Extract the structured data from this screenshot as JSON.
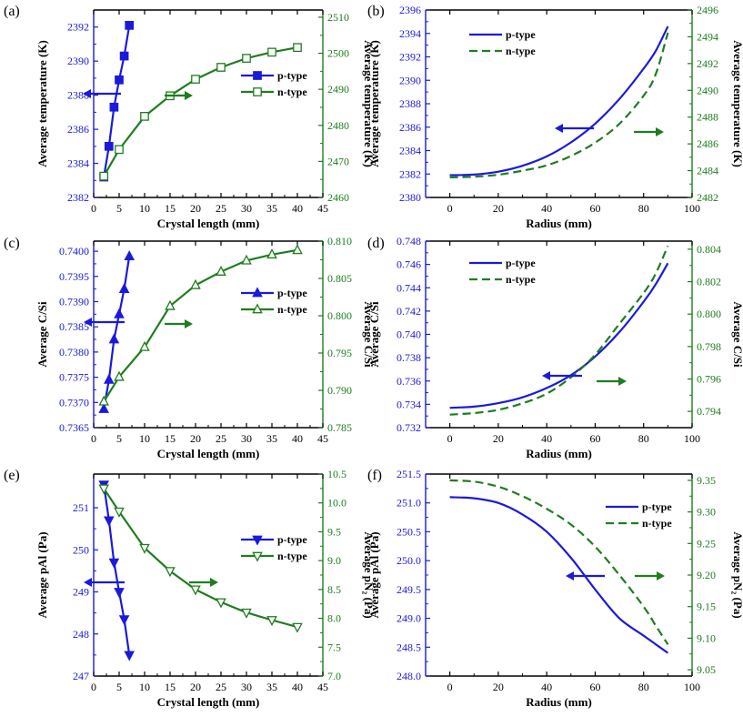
{
  "colors": {
    "p": "#1a1adb",
    "n": "#1e7d1e",
    "axis": "#000000"
  },
  "chart_data": [
    {
      "id": "a",
      "panel_label": "(a)",
      "type": "line",
      "xlabel": "Crystal length (mm)",
      "ylabel_left": "Average temperature (K)",
      "ylabel_right": "Average temperature (K)",
      "xlim": [
        0,
        45
      ],
      "xticks": [
        0,
        5,
        10,
        15,
        20,
        25,
        30,
        35,
        40,
        45
      ],
      "ylim_left": [
        2382,
        2393
      ],
      "yticks_left": [
        2382,
        2384,
        2386,
        2388,
        2390,
        2392
      ],
      "ylim_right": [
        2460,
        2512
      ],
      "yticks_right": [
        2460,
        2470,
        2480,
        2490,
        2500,
        2510
      ],
      "series": [
        {
          "name": "p-type",
          "axis": "left",
          "marker": "square",
          "filled": true,
          "color": "p",
          "x": [
            2,
            3,
            4,
            5,
            6,
            7
          ],
          "y": [
            2383.2,
            2385.0,
            2387.3,
            2388.9,
            2390.3,
            2392.1
          ]
        },
        {
          "name": "n-type",
          "axis": "right",
          "marker": "square",
          "filled": false,
          "color": "n",
          "x": [
            2,
            5,
            10,
            15,
            20,
            25,
            30,
            35,
            40
          ],
          "y": [
            2465.9,
            2473.3,
            2482.5,
            2488.2,
            2492.8,
            2496.1,
            2498.6,
            2500.3,
            2501.6
          ]
        }
      ],
      "legend": [
        "p-type",
        "n-type"
      ]
    },
    {
      "id": "b",
      "panel_label": "(b)",
      "type": "line",
      "xlabel": "Radius (mm)",
      "ylabel_left": "Average temperature (K)",
      "ylabel_right": "Average temperature (K)",
      "xlim": [
        -10,
        100
      ],
      "xticks": [
        0,
        20,
        40,
        60,
        80,
        100
      ],
      "ylim_left": [
        2380,
        2396
      ],
      "yticks_left": [
        2380,
        2382,
        2384,
        2386,
        2388,
        2390,
        2392,
        2394,
        2396
      ],
      "ylim_right": [
        2482,
        2496
      ],
      "yticks_right": [
        2482,
        2484,
        2486,
        2488,
        2490,
        2492,
        2494,
        2496
      ],
      "series": [
        {
          "name": "p-type",
          "axis": "left",
          "style": "solid",
          "color": "p",
          "x": [
            0,
            10,
            20,
            30,
            40,
            50,
            60,
            70,
            80,
            85,
            90
          ],
          "y": [
            2381.9,
            2381.95,
            2382.2,
            2382.7,
            2383.5,
            2384.7,
            2386.3,
            2388.4,
            2391.0,
            2392.5,
            2394.6
          ]
        },
        {
          "name": "n-type",
          "axis": "right",
          "style": "dashed",
          "color": "n",
          "x": [
            0,
            10,
            20,
            30,
            40,
            50,
            60,
            70,
            80,
            85,
            90
          ],
          "y": [
            2483.5,
            2483.55,
            2483.7,
            2484.0,
            2484.4,
            2485.1,
            2486.1,
            2487.5,
            2489.6,
            2491.2,
            2494.3
          ]
        }
      ],
      "legend": [
        "p-type",
        "n-type"
      ]
    },
    {
      "id": "c",
      "panel_label": "(c)",
      "type": "line",
      "xlabel": "Crystal length (mm)",
      "ylabel_left": "Average C/Si",
      "ylabel_right": "Average C/Si",
      "xlim": [
        0,
        45
      ],
      "xticks": [
        0,
        5,
        10,
        15,
        20,
        25,
        30,
        35,
        40,
        45
      ],
      "ylim_left": [
        0.7365,
        0.7402
      ],
      "yticks_left": [
        0.7365,
        0.737,
        0.7375,
        0.738,
        0.7385,
        0.739,
        0.7395,
        0.74
      ],
      "ytick_fmt_left": 4,
      "ylim_right": [
        0.785,
        0.81
      ],
      "yticks_right": [
        0.785,
        0.79,
        0.795,
        0.8,
        0.805,
        0.81
      ],
      "ytick_fmt_right": 3,
      "series": [
        {
          "name": "p-type",
          "axis": "left",
          "marker": "triangle-up",
          "filled": true,
          "color": "p",
          "x": [
            2,
            3,
            4,
            5,
            6,
            7
          ],
          "y": [
            0.73687,
            0.73745,
            0.73825,
            0.73875,
            0.73925,
            0.7399
          ]
        },
        {
          "name": "n-type",
          "axis": "right",
          "marker": "triangle-up",
          "filled": false,
          "color": "n",
          "x": [
            2,
            5,
            10,
            15,
            20,
            25,
            30,
            35,
            40
          ],
          "y": [
            0.7885,
            0.7918,
            0.7958,
            0.8013,
            0.8041,
            0.8059,
            0.8074,
            0.8082,
            0.8088
          ]
        }
      ],
      "legend": [
        "p-type",
        "n-type"
      ]
    },
    {
      "id": "d",
      "panel_label": "(d)",
      "type": "line",
      "xlabel": "Radius (mm)",
      "ylabel_left": "Average C/Si",
      "ylabel_right": "Average C/Si",
      "xlim": [
        -10,
        100
      ],
      "xticks": [
        0,
        20,
        40,
        60,
        80,
        100
      ],
      "ylim_left": [
        0.732,
        0.748
      ],
      "yticks_left": [
        0.732,
        0.734,
        0.736,
        0.738,
        0.74,
        0.742,
        0.744,
        0.746,
        0.748
      ],
      "ytick_fmt_left": 3,
      "ylim_right": [
        0.793,
        0.8045
      ],
      "yticks_right": [
        0.794,
        0.796,
        0.798,
        0.8,
        0.802,
        0.804
      ],
      "ytick_fmt_right": 3,
      "series": [
        {
          "name": "p-type",
          "axis": "left",
          "style": "solid",
          "color": "p",
          "x": [
            0,
            10,
            20,
            30,
            40,
            50,
            60,
            70,
            80,
            85,
            90
          ],
          "y": [
            0.7337,
            0.7338,
            0.7341,
            0.7346,
            0.7354,
            0.7365,
            0.7381,
            0.7402,
            0.7428,
            0.7443,
            0.7461
          ]
        },
        {
          "name": "n-type",
          "axis": "right",
          "style": "dashed",
          "color": "n",
          "x": [
            0,
            10,
            20,
            30,
            40,
            50,
            60,
            70,
            80,
            85,
            90
          ],
          "y": [
            0.7938,
            0.7939,
            0.7941,
            0.7945,
            0.7951,
            0.7961,
            0.7975,
            0.7994,
            0.8013,
            0.8025,
            0.8042
          ]
        }
      ],
      "legend": [
        "p-type",
        "n-type"
      ]
    },
    {
      "id": "e",
      "panel_label": "(e)",
      "type": "line",
      "xlabel": "Crystal length (mm)",
      "ylabel_left": "Average pAl (Pa)",
      "ylabel_right": "Average pN₂ (Pa)",
      "xlim": [
        0,
        45
      ],
      "xticks": [
        0,
        5,
        10,
        15,
        20,
        25,
        30,
        35,
        40,
        45
      ],
      "ylim_left": [
        247,
        251.8
      ],
      "yticks_left": [
        247,
        248,
        249,
        250,
        251
      ],
      "ylim_right": [
        7.0,
        10.5
      ],
      "yticks_right": [
        7.0,
        7.5,
        8.0,
        8.5,
        9.0,
        9.5,
        10.0,
        10.5
      ],
      "ytick_fmt_right": 1,
      "series": [
        {
          "name": "p-type",
          "axis": "left",
          "marker": "triangle-down",
          "filled": true,
          "color": "p",
          "x": [
            2,
            3,
            4,
            5,
            6,
            7
          ],
          "y": [
            251.55,
            250.7,
            249.7,
            249.0,
            248.35,
            247.5
          ]
        },
        {
          "name": "n-type",
          "axis": "right",
          "marker": "triangle-down",
          "filled": false,
          "color": "n",
          "x": [
            2,
            5,
            10,
            15,
            20,
            25,
            30,
            35,
            40
          ],
          "y": [
            10.25,
            9.85,
            9.22,
            8.82,
            8.5,
            8.28,
            8.1,
            7.97,
            7.85
          ]
        }
      ],
      "legend": [
        "p-type",
        "n-type"
      ]
    },
    {
      "id": "f",
      "panel_label": "(f)",
      "type": "line",
      "xlabel": "Radius (mm)",
      "ylabel_left": "Average pAl (Pa)",
      "ylabel_right": "Average pN₂ (Pa)",
      "xlim": [
        -10,
        100
      ],
      "xticks": [
        0,
        20,
        40,
        60,
        80,
        100
      ],
      "ylim_left": [
        248.0,
        251.5
      ],
      "yticks_left": [
        248.0,
        248.5,
        249.0,
        249.5,
        250.0,
        250.5,
        251.0,
        251.5
      ],
      "ytick_fmt_left": 1,
      "ylim_right": [
        9.04,
        9.36
      ],
      "yticks_right": [
        9.05,
        9.1,
        9.15,
        9.2,
        9.25,
        9.3,
        9.35
      ],
      "ytick_fmt_right": 2,
      "series": [
        {
          "name": "p-type",
          "axis": "left",
          "style": "solid",
          "color": "p",
          "x": [
            0,
            10,
            20,
            30,
            40,
            50,
            60,
            70,
            80,
            85,
            90
          ],
          "y": [
            251.1,
            251.08,
            251.0,
            250.8,
            250.5,
            250.05,
            249.5,
            249.0,
            248.7,
            248.55,
            248.4
          ]
        },
        {
          "name": "n-type",
          "axis": "right",
          "style": "dashed",
          "color": "n",
          "x": [
            0,
            10,
            20,
            30,
            40,
            50,
            60,
            70,
            80,
            85,
            90
          ],
          "y": [
            9.35,
            9.348,
            9.34,
            9.325,
            9.305,
            9.28,
            9.245,
            9.2,
            9.15,
            9.12,
            9.09
          ]
        }
      ],
      "legend": [
        "p-type",
        "n-type"
      ]
    }
  ]
}
